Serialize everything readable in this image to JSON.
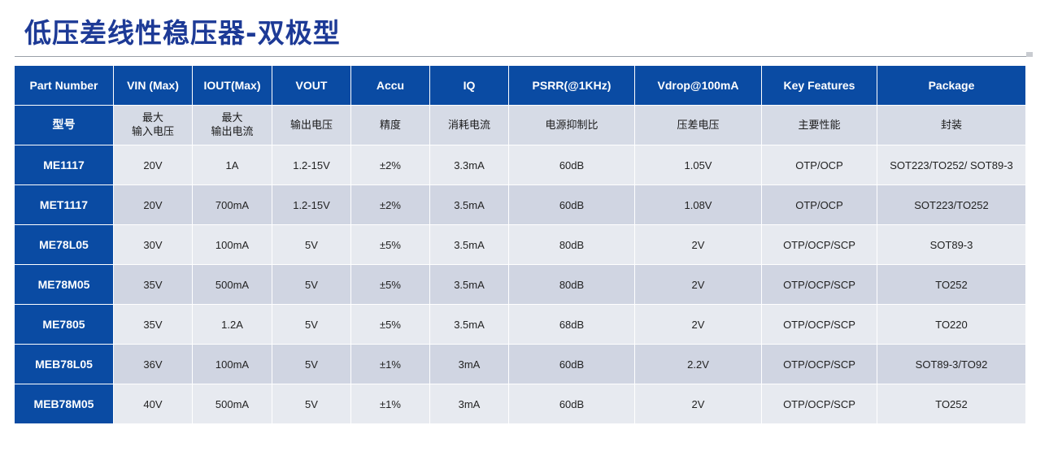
{
  "title": "低压差线性稳压器-双极型",
  "headers_en": [
    "Part Number",
    "VIN (Max)",
    "IOUT(Max)",
    "VOUT",
    "Accu",
    "IQ",
    "PSRR(@1KHz)",
    "Vdrop@100mA",
    "Key Features",
    "Package"
  ],
  "headers_cn": [
    [
      "型号"
    ],
    [
      "最大",
      "输入电压"
    ],
    [
      "最大",
      "输出电流"
    ],
    [
      "输出电压"
    ],
    [
      "精度"
    ],
    [
      "消耗电流"
    ],
    [
      "电源抑制比"
    ],
    [
      "压差电压"
    ],
    [
      "主要性能"
    ],
    [
      "封装"
    ]
  ],
  "rows": [
    [
      "ME1117",
      "20V",
      "1A",
      "1.2-15V",
      "±2%",
      "3.3mA",
      "60dB",
      "1.05V",
      "OTP/OCP",
      "SOT223/TO252/ SOT89-3"
    ],
    [
      "MET1117",
      "20V",
      "700mA",
      "1.2-15V",
      "±2%",
      "3.5mA",
      "60dB",
      "1.08V",
      "OTP/OCP",
      "SOT223/TO252"
    ],
    [
      "ME78L05",
      "30V",
      "100mA",
      "5V",
      "±5%",
      "3.5mA",
      "80dB",
      "2V",
      "OTP/OCP/SCP",
      "SOT89-3"
    ],
    [
      "ME78M05",
      "35V",
      "500mA",
      "5V",
      "±5%",
      "3.5mA",
      "80dB",
      "2V",
      "OTP/OCP/SCP",
      "TO252"
    ],
    [
      "ME7805",
      "35V",
      "1.2A",
      "5V",
      "±5%",
      "3.5mA",
      "68dB",
      "2V",
      "OTP/OCP/SCP",
      "TO220"
    ],
    [
      "MEB78L05",
      "36V",
      "100mA",
      "5V",
      "±1%",
      "3mA",
      "60dB",
      "2.2V",
      "OTP/OCP/SCP",
      "SOT89-3/TO92"
    ],
    [
      "MEB78M05",
      "40V",
      "500mA",
      "5V",
      "±1%",
      "3mA",
      "60dB",
      "2V",
      "OTP/OCP/SCP",
      "TO252"
    ]
  ],
  "colors": {
    "title": "#1d3a96",
    "header_blue": "#0a4ba3",
    "row_light": "#e7eaf0",
    "row_dark": "#d0d5e2",
    "cn_header": "#d6dbe6"
  }
}
